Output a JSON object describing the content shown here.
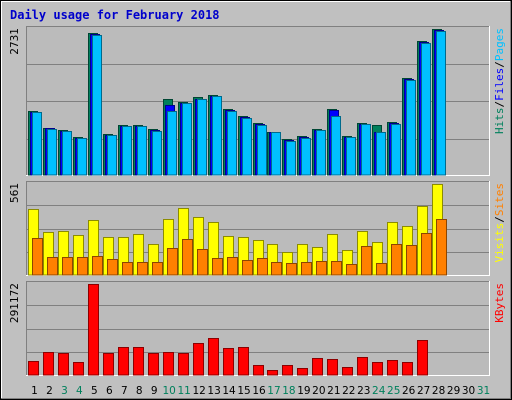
{
  "chart_data": {
    "type": "bar",
    "title": "Daily usage for February 2018",
    "days": [
      "1",
      "2",
      "3",
      "4",
      "5",
      "6",
      "7",
      "8",
      "9",
      "10",
      "11",
      "12",
      "13",
      "14",
      "15",
      "16",
      "17",
      "18",
      "19",
      "20",
      "21",
      "22",
      "23",
      "24",
      "25",
      "26",
      "27",
      "28",
      "29",
      "30",
      "31"
    ],
    "weekend_days": [
      "3",
      "4",
      "10",
      "11",
      "17",
      "18",
      "24",
      "25",
      "31"
    ],
    "colors": {
      "background": "#C0C0C0",
      "plot_bg": "#BBBBBB",
      "title": "#0000CC",
      "hits": "#00805C",
      "files": "#0000FF",
      "pages": "#00C0FF",
      "visits": "#FFFF00",
      "sites": "#FF8000",
      "kbytes": "#FF0000",
      "weekend": "#00805C",
      "weekday": "#000000"
    },
    "panels": [
      {
        "id": "hits-files-pages",
        "ymax_label": "2731",
        "ymax": 2731,
        "legend": [
          {
            "label": "Hits",
            "color": "#00805C"
          },
          {
            "label": "/",
            "color": "#000000"
          },
          {
            "label": "Files",
            "color": "#0000FF"
          },
          {
            "label": "/",
            "color": "#000000"
          },
          {
            "label": "Pages",
            "color": "#00C0FF"
          }
        ],
        "series": [
          {
            "name": "Hits",
            "color": "#00805C",
            "values": [
              1200,
              888,
              843,
              713,
              2660,
              770,
              937,
              937,
              856,
              1419,
              1369,
              1454,
              1500,
              1234,
              1096,
              967,
              813,
              665,
              723,
              863,
              1238,
              735,
              976,
              927,
              988,
              1806,
              2500,
              2731,
              0,
              0,
              0
            ]
          },
          {
            "name": "Files",
            "color": "#0000FF",
            "values": [
              1180,
              870,
              830,
              700,
              2640,
              755,
              920,
              925,
              840,
              1310,
              1350,
              1430,
              1480,
              1215,
              1080,
              950,
              800,
              650,
              705,
              850,
              1220,
              720,
              960,
              810,
              970,
              1790,
              2480,
              2710,
              0,
              0,
              0
            ]
          },
          {
            "name": "Pages",
            "color": "#00C0FF",
            "values": [
              1170,
              860,
              820,
              690,
              2620,
              740,
              910,
              915,
              830,
              1200,
              1340,
              1420,
              1470,
              1205,
              1070,
              940,
              795,
              645,
              700,
              840,
              1110,
              715,
              950,
              800,
              960,
              1780,
              2470,
              2700,
              0,
              0,
              0
            ]
          }
        ]
      },
      {
        "id": "visits-sites",
        "ymax_label": "561",
        "ymax": 561,
        "legend": [
          {
            "label": "Visits",
            "color": "#FFFF00"
          },
          {
            "label": "/",
            "color": "#000000"
          },
          {
            "label": "Sites",
            "color": "#FF8000"
          }
        ],
        "series": [
          {
            "name": "Visits",
            "color": "#FFFF00",
            "values": [
              405,
              265,
              270,
              248,
              336,
              233,
              236,
              251,
              193,
              347,
              412,
              356,
              328,
              238,
              233,
              215,
              190,
              141,
              193,
              174,
              252,
              153,
              270,
              206,
              329,
              303,
              425,
              561,
              0,
              0,
              0
            ]
          },
          {
            "name": "Sites",
            "color": "#FF8000",
            "values": [
              231,
              112,
              114,
              112,
              115,
              101,
              80,
              80,
              82,
              169,
              223,
              161,
              105,
              113,
              94,
              107,
              80,
              72,
              79,
              88,
              85,
              65,
              177,
              75,
              190,
              184,
              260,
              347,
              0,
              0,
              0
            ]
          }
        ]
      },
      {
        "id": "kbytes",
        "ymax_label": "291172",
        "ymax": 291172,
        "legend": [
          {
            "label": "KBytes",
            "color": "#FF0000"
          }
        ],
        "series": [
          {
            "name": "KBytes",
            "color": "#FF0000",
            "values": [
              44000,
              72000,
              70000,
              41000,
              291172,
              69000,
              91000,
              89000,
              69000,
              72000,
              69000,
              103000,
              118000,
              86000,
              91000,
              32000,
              17000,
              31000,
              23000,
              53000,
              50000,
              26000,
              57000,
              40000,
              47000,
              43000,
              111000,
              0,
              0,
              0,
              0
            ]
          }
        ]
      }
    ]
  }
}
